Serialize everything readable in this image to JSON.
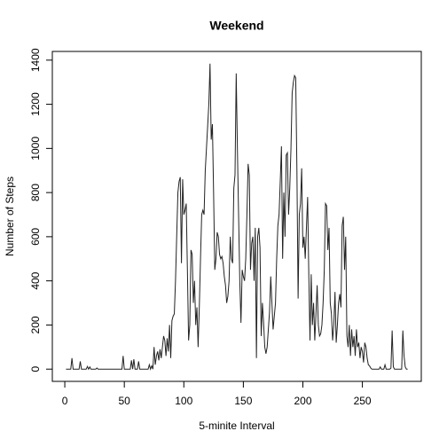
{
  "chart_data": {
    "type": "line",
    "title": "Weekend",
    "xlabel": "5-minite Interval",
    "ylabel": "Number of Steps",
    "color": "#222222",
    "x": [
      1,
      2,
      3,
      4,
      5,
      6,
      7,
      8,
      9,
      10,
      11,
      12,
      13,
      14,
      15,
      16,
      17,
      18,
      19,
      20,
      21,
      22,
      23,
      24,
      25,
      26,
      27,
      28,
      29,
      30,
      31,
      32,
      33,
      34,
      35,
      36,
      37,
      38,
      39,
      40,
      41,
      42,
      43,
      44,
      45,
      46,
      47,
      48,
      49,
      50,
      51,
      52,
      53,
      54,
      55,
      56,
      57,
      58,
      59,
      60,
      61,
      62,
      63,
      64,
      65,
      66,
      67,
      68,
      69,
      70,
      71,
      72,
      73,
      74,
      75,
      76,
      77,
      78,
      79,
      80,
      81,
      82,
      83,
      84,
      85,
      86,
      87,
      88,
      89,
      90,
      91,
      92,
      93,
      94,
      95,
      96,
      97,
      98,
      99,
      100,
      101,
      102,
      103,
      104,
      105,
      106,
      107,
      108,
      109,
      110,
      111,
      112,
      113,
      114,
      115,
      116,
      117,
      118,
      119,
      120,
      121,
      122,
      123,
      124,
      125,
      126,
      127,
      128,
      129,
      130,
      131,
      132,
      133,
      134,
      135,
      136,
      137,
      138,
      139,
      140,
      141,
      142,
      143,
      144,
      145,
      146,
      147,
      148,
      149,
      150,
      151,
      152,
      153,
      154,
      155,
      156,
      157,
      158,
      159,
      160,
      161,
      162,
      163,
      164,
      165,
      166,
      167,
      168,
      169,
      170,
      171,
      172,
      173,
      174,
      175,
      176,
      177,
      178,
      179,
      180,
      181,
      182,
      183,
      184,
      185,
      186,
      187,
      188,
      189,
      190,
      191,
      192,
      193,
      194,
      195,
      196,
      197,
      198,
      199,
      200,
      201,
      202,
      203,
      204,
      205,
      206,
      207,
      208,
      209,
      210,
      211,
      212,
      213,
      214,
      215,
      216,
      217,
      218,
      219,
      220,
      221,
      222,
      223,
      224,
      225,
      226,
      227,
      228,
      229,
      230,
      231,
      232,
      233,
      234,
      235,
      236,
      237,
      238,
      239,
      240,
      241,
      242,
      243,
      244,
      245,
      246,
      247,
      248,
      249,
      250,
      251,
      252,
      253,
      254,
      255,
      256,
      257,
      258,
      259,
      260,
      261,
      262,
      263,
      264,
      265,
      266,
      267,
      268,
      269,
      270,
      271,
      272,
      273,
      274,
      275,
      276,
      277,
      278,
      279,
      280,
      281,
      282,
      283,
      284,
      285,
      286,
      287,
      288
    ],
    "values": [
      0,
      0,
      0,
      0,
      0,
      50,
      0,
      0,
      0,
      0,
      0,
      0,
      35,
      0,
      0,
      0,
      0,
      0,
      12,
      0,
      10,
      0,
      0,
      0,
      0,
      0,
      5,
      0,
      0,
      0,
      0,
      0,
      0,
      0,
      0,
      0,
      0,
      0,
      0,
      0,
      0,
      0,
      0,
      0,
      0,
      0,
      0,
      0,
      60,
      0,
      0,
      0,
      0,
      0,
      0,
      40,
      0,
      45,
      0,
      0,
      0,
      35,
      0,
      0,
      0,
      0,
      0,
      0,
      0,
      0,
      20,
      0,
      15,
      0,
      100,
      20,
      60,
      80,
      40,
      90,
      50,
      100,
      150,
      130,
      60,
      140,
      80,
      200,
      50,
      220,
      240,
      250,
      400,
      600,
      800,
      850,
      870,
      480,
      860,
      700,
      720,
      750,
      450,
      130,
      200,
      540,
      520,
      300,
      400,
      200,
      280,
      100,
      280,
      500,
      700,
      720,
      700,
      900,
      1000,
      1100,
      1200,
      1384,
      1040,
      1110,
      800,
      450,
      500,
      620,
      600,
      520,
      500,
      510,
      480,
      420,
      380,
      300,
      330,
      400,
      600,
      500,
      480,
      820,
      880,
      1340,
      1000,
      700,
      400,
      210,
      450,
      420,
      400,
      500,
      700,
      930,
      880,
      450,
      570,
      600,
      400,
      640,
      50,
      600,
      640,
      550,
      150,
      300,
      210,
      100,
      70,
      100,
      180,
      260,
      420,
      300,
      180,
      240,
      300,
      500,
      650,
      700,
      850,
      1010,
      500,
      800,
      600,
      970,
      980,
      700,
      820,
      1000,
      1250,
      1300,
      1330,
      1320,
      900,
      320,
      700,
      750,
      910,
      550,
      600,
      500,
      640,
      780,
      420,
      130,
      430,
      200,
      300,
      130,
      250,
      380,
      200,
      150,
      160,
      200,
      300,
      450,
      750,
      740,
      540,
      640,
      300,
      250,
      130,
      200,
      350,
      120,
      200,
      300,
      340,
      280,
      650,
      690,
      450,
      600,
      150,
      100,
      200,
      60,
      180,
      100,
      150,
      60,
      180,
      100,
      120,
      50,
      100,
      80,
      30,
      120,
      100,
      50,
      20,
      15,
      5,
      0,
      0,
      0,
      0,
      0,
      0,
      0,
      10,
      0,
      0,
      0,
      20,
      0,
      0,
      0,
      0,
      5,
      175,
      10,
      0,
      0,
      0,
      0,
      0,
      0,
      0,
      175,
      60,
      10,
      0,
      0
    ],
    "xlim": [
      -10.48,
      299.48
    ],
    "xticks": [
      0,
      50,
      100,
      150,
      200,
      250
    ],
    "ylim": [
      -55.4,
      1439.4
    ],
    "yticks": [
      0,
      200,
      400,
      600,
      800,
      1000,
      1200,
      1400
    ]
  }
}
